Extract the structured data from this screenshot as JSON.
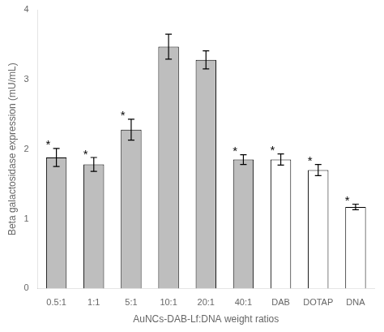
{
  "chart_data": {
    "type": "bar",
    "categories": [
      "0.5:1",
      "1:1",
      "5:1",
      "10:1",
      "20:1",
      "40:1",
      "DAB",
      "DOTAP",
      "DNA"
    ],
    "values": [
      1.88,
      1.78,
      2.28,
      3.47,
      3.28,
      1.85,
      1.85,
      1.7,
      1.17
    ],
    "errors": [
      0.13,
      0.1,
      0.15,
      0.18,
      0.13,
      0.07,
      0.08,
      0.08,
      0.04
    ],
    "colors": [
      "#bebebe",
      "#bebebe",
      "#bebebe",
      "#bebebe",
      "#bebebe",
      "#bebebe",
      "white",
      "white",
      "white"
    ],
    "xlabel": "AuNCs-DAB-Lf:DNA weight ratios",
    "ylabel": "Beta galactosidase expression (mU/mL)",
    "ylim": [
      0,
      4.0
    ],
    "yticks": [
      0,
      1,
      2,
      3,
      4
    ],
    "grid": false,
    "annotations": [
      {
        "text": "*",
        "category": "0.5:1"
      },
      {
        "text": "*",
        "category": "1:1"
      },
      {
        "text": "*",
        "category": "5:1"
      },
      {
        "text": "*",
        "category": "40:1"
      },
      {
        "text": "*",
        "category": "DAB"
      },
      {
        "text": "*",
        "category": "DOTAP"
      },
      {
        "text": "*",
        "category": "DNA"
      }
    ]
  }
}
